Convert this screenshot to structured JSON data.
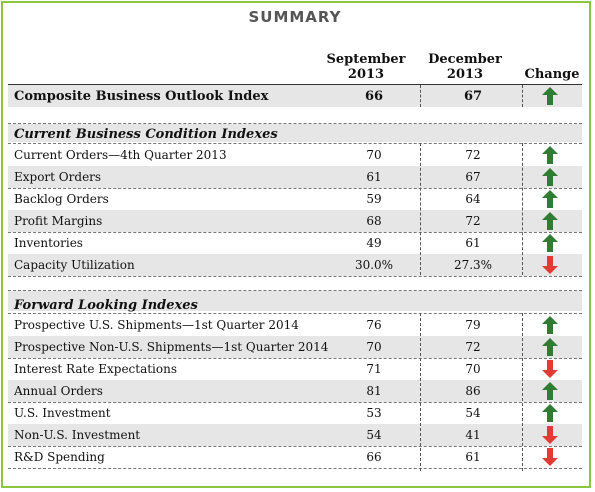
{
  "title": "SUMMARY",
  "columns": {
    "sept": [
      "September",
      "2013"
    ],
    "dec": [
      "December",
      "2013"
    ],
    "change": "Change"
  },
  "composite": {
    "label": "Composite Business Outlook Index",
    "sept": "66",
    "dec": "67",
    "change": "up"
  },
  "current": {
    "heading": "Current Business Condition Indexes",
    "rows": [
      {
        "label": "Current Orders—4th Quarter 2013",
        "sept": "70",
        "dec": "72",
        "change": "up"
      },
      {
        "label": "Export Orders",
        "sept": "61",
        "dec": "67",
        "change": "up"
      },
      {
        "label": "Backlog Orders",
        "sept": "59",
        "dec": "64",
        "change": "up"
      },
      {
        "label": "Profit Margins",
        "sept": "68",
        "dec": "72",
        "change": "up"
      },
      {
        "label": "Inventories",
        "sept": "49",
        "dec": "61",
        "change": "up"
      },
      {
        "label": "Capacity Utilization",
        "sept": "30.0%",
        "dec": "27.3%",
        "change": "down"
      }
    ]
  },
  "forward": {
    "heading": "Forward Looking Indexes",
    "rows": [
      {
        "label": "Prospective U.S. Shipments—1st Quarter 2014",
        "sept": "76",
        "dec": "79",
        "change": "up"
      },
      {
        "label": "Prospective Non-U.S. Shipments—1st Quarter 2014",
        "sept": "70",
        "dec": "72",
        "change": "up"
      },
      {
        "label": "Interest Rate Expectations",
        "sept": "71",
        "dec": "70",
        "change": "down"
      },
      {
        "label": "Annual Orders",
        "sept": "81",
        "dec": "86",
        "change": "up"
      },
      {
        "label": "U.S. Investment",
        "sept": "53",
        "dec": "54",
        "change": "up"
      },
      {
        "label": "Non-U.S. Investment",
        "sept": "54",
        "dec": "41",
        "change": "down"
      },
      {
        "label": "R&D Spending",
        "sept": "66",
        "dec": "61",
        "change": "down"
      }
    ]
  },
  "colors": {
    "border": "#8cc63f",
    "up": "#2e7d32",
    "down": "#e53935",
    "shade": "#e6e6e6"
  }
}
